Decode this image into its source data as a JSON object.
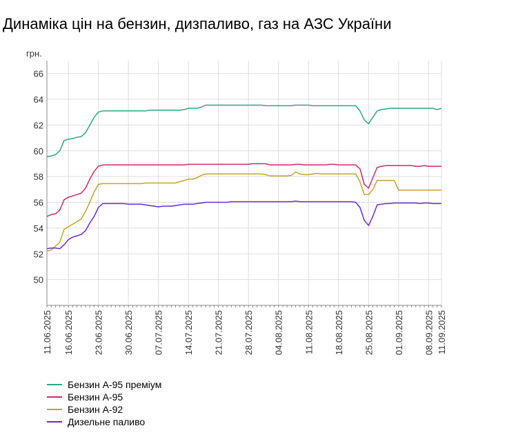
{
  "title": "Динаміка цін на бензин, дизпаливо, газ на АЗС України",
  "chart_data": {
    "type": "line",
    "title": "Динаміка цін на бензин, дизпаливо, газ на АЗС України",
    "ylabel": "грн.",
    "ylim": [
      48,
      67
    ],
    "yticks": [
      50,
      52,
      54,
      56,
      58,
      60,
      62,
      64,
      66
    ],
    "grid": true,
    "legend": "bottom-left",
    "x": [
      "11.06.2025",
      "12.06.2025",
      "13.06.2025",
      "14.06.2025",
      "15.06.2025",
      "16.06.2025",
      "17.06.2025",
      "18.06.2025",
      "19.06.2025",
      "20.06.2025",
      "21.06.2025",
      "22.06.2025",
      "23.06.2025",
      "24.06.2025",
      "25.06.2025",
      "26.06.2025",
      "27.06.2025",
      "28.06.2025",
      "29.06.2025",
      "30.06.2025",
      "01.07.2025",
      "02.07.2025",
      "03.07.2025",
      "04.07.2025",
      "05.07.2025",
      "06.07.2025",
      "07.07.2025",
      "08.07.2025",
      "09.07.2025",
      "10.07.2025",
      "11.07.2025",
      "12.07.2025",
      "13.07.2025",
      "14.07.2025",
      "15.07.2025",
      "16.07.2025",
      "17.07.2025",
      "18.07.2025",
      "19.07.2025",
      "20.07.2025",
      "21.07.2025",
      "22.07.2025",
      "23.07.2025",
      "24.07.2025",
      "25.07.2025",
      "26.07.2025",
      "27.07.2025",
      "28.07.2025",
      "29.07.2025",
      "30.07.2025",
      "31.07.2025",
      "01.08.2025",
      "02.08.2025",
      "03.08.2025",
      "04.08.2025",
      "05.08.2025",
      "06.08.2025",
      "07.08.2025",
      "08.08.2025",
      "09.08.2025",
      "10.08.2025",
      "11.08.2025",
      "12.08.2025",
      "13.08.2025",
      "14.08.2025",
      "15.08.2025",
      "16.08.2025",
      "17.08.2025",
      "18.08.2025",
      "19.08.2025",
      "20.08.2025",
      "21.08.2025",
      "22.08.2025",
      "23.08.2025",
      "24.08.2025",
      "25.08.2025",
      "26.08.2025",
      "27.08.2025",
      "28.08.2025",
      "29.08.2025",
      "30.08.2025",
      "31.08.2025",
      "01.09.2025",
      "02.09.2025",
      "03.09.2025",
      "04.09.2025",
      "05.09.2025",
      "06.09.2025",
      "07.09.2025",
      "08.09.2025",
      "09.09.2025",
      "10.09.2025",
      "11.09.2025"
    ],
    "xtick_labels": [
      "11.06.2025",
      "16.06.2025",
      "23.06.2025",
      "30.06.2025",
      "07.07.2025",
      "14.07.2025",
      "21.07.2025",
      "28.07.2025",
      "04.08.2025",
      "11.08.2025",
      "18.08.2025",
      "25.08.2025",
      "01.09.2025",
      "08.09.2025",
      "11.09.2025"
    ],
    "series": [
      {
        "name": "Бензин А-95 преміум",
        "color": "#2aa88a",
        "values": [
          59.55,
          59.6,
          59.7,
          60.0,
          60.8,
          60.9,
          60.95,
          61.05,
          61.1,
          61.4,
          62.0,
          62.6,
          63.0,
          63.1,
          63.1,
          63.1,
          63.1,
          63.1,
          63.1,
          63.1,
          63.1,
          63.1,
          63.1,
          63.1,
          63.15,
          63.15,
          63.15,
          63.15,
          63.15,
          63.15,
          63.15,
          63.15,
          63.2,
          63.3,
          63.3,
          63.3,
          63.4,
          63.55,
          63.55,
          63.55,
          63.55,
          63.55,
          63.55,
          63.55,
          63.55,
          63.55,
          63.55,
          63.55,
          63.55,
          63.55,
          63.55,
          63.5,
          63.5,
          63.5,
          63.5,
          63.5,
          63.5,
          63.5,
          63.55,
          63.55,
          63.55,
          63.55,
          63.5,
          63.5,
          63.5,
          63.5,
          63.5,
          63.5,
          63.5,
          63.5,
          63.5,
          63.5,
          63.5,
          63.1,
          62.4,
          62.1,
          62.6,
          63.1,
          63.2,
          63.25,
          63.3,
          63.3,
          63.3,
          63.3,
          63.3,
          63.3,
          63.3,
          63.3,
          63.3,
          63.3,
          63.3,
          63.2,
          63.3
        ]
      },
      {
        "name": "Бензин А-95",
        "color": "#d6256a",
        "values": [
          54.9,
          55.05,
          55.1,
          55.4,
          56.2,
          56.4,
          56.5,
          56.6,
          56.7,
          57.1,
          57.8,
          58.4,
          58.8,
          58.9,
          58.9,
          58.9,
          58.9,
          58.9,
          58.9,
          58.9,
          58.9,
          58.9,
          58.9,
          58.9,
          58.9,
          58.9,
          58.9,
          58.9,
          58.9,
          58.9,
          58.9,
          58.9,
          58.9,
          58.95,
          58.95,
          58.95,
          58.95,
          58.95,
          58.95,
          58.95,
          58.95,
          58.95,
          58.95,
          58.95,
          58.95,
          58.95,
          58.95,
          58.95,
          59.0,
          59.0,
          59.0,
          59.0,
          58.9,
          58.9,
          58.9,
          58.9,
          58.9,
          58.9,
          58.95,
          58.95,
          58.9,
          58.9,
          58.9,
          58.9,
          58.9,
          58.9,
          58.95,
          58.95,
          58.9,
          58.9,
          58.9,
          58.9,
          58.9,
          58.6,
          57.4,
          57.1,
          57.9,
          58.7,
          58.8,
          58.85,
          58.85,
          58.85,
          58.85,
          58.85,
          58.85,
          58.85,
          58.8,
          58.8,
          58.85,
          58.8,
          58.8,
          58.8,
          58.8
        ]
      },
      {
        "name": "Бензин А-92",
        "color": "#c9a225",
        "values": [
          52.2,
          52.3,
          52.6,
          52.9,
          53.9,
          54.1,
          54.3,
          54.5,
          54.7,
          55.3,
          56.0,
          56.8,
          57.4,
          57.45,
          57.45,
          57.45,
          57.45,
          57.45,
          57.45,
          57.45,
          57.45,
          57.45,
          57.45,
          57.5,
          57.5,
          57.5,
          57.5,
          57.5,
          57.5,
          57.5,
          57.5,
          57.6,
          57.7,
          57.8,
          57.8,
          57.9,
          58.1,
          58.2,
          58.2,
          58.2,
          58.2,
          58.2,
          58.2,
          58.2,
          58.2,
          58.2,
          58.2,
          58.2,
          58.2,
          58.2,
          58.2,
          58.15,
          58.05,
          58.05,
          58.05,
          58.05,
          58.05,
          58.1,
          58.35,
          58.2,
          58.15,
          58.15,
          58.2,
          58.25,
          58.2,
          58.2,
          58.2,
          58.2,
          58.2,
          58.2,
          58.2,
          58.2,
          58.2,
          57.6,
          56.6,
          56.6,
          57.0,
          57.7,
          57.7,
          57.7,
          57.7,
          57.7,
          56.95,
          56.95,
          56.95,
          56.95,
          56.95,
          56.95,
          56.95,
          56.95,
          56.95,
          56.95,
          56.95
        ]
      },
      {
        "name": "Дизельне паливо",
        "color": "#6a2ad6",
        "values": [
          52.4,
          52.45,
          52.45,
          52.4,
          52.7,
          53.1,
          53.3,
          53.4,
          53.5,
          53.8,
          54.4,
          54.9,
          55.6,
          55.9,
          55.9,
          55.9,
          55.9,
          55.9,
          55.9,
          55.85,
          55.85,
          55.85,
          55.85,
          55.8,
          55.75,
          55.7,
          55.65,
          55.7,
          55.7,
          55.7,
          55.75,
          55.8,
          55.85,
          55.85,
          55.85,
          55.9,
          55.95,
          56.0,
          56.0,
          56.0,
          56.0,
          56.0,
          56.0,
          56.05,
          56.05,
          56.05,
          56.05,
          56.05,
          56.05,
          56.05,
          56.05,
          56.05,
          56.05,
          56.05,
          56.05,
          56.05,
          56.05,
          56.05,
          56.1,
          56.05,
          56.05,
          56.05,
          56.05,
          56.05,
          56.05,
          56.05,
          56.05,
          56.05,
          56.05,
          56.05,
          56.05,
          56.05,
          56.0,
          55.6,
          54.6,
          54.2,
          54.9,
          55.8,
          55.85,
          55.9,
          55.9,
          55.95,
          55.95,
          55.95,
          55.95,
          55.95,
          55.95,
          55.9,
          55.95,
          55.95,
          55.9,
          55.9,
          55.9
        ]
      }
    ]
  }
}
